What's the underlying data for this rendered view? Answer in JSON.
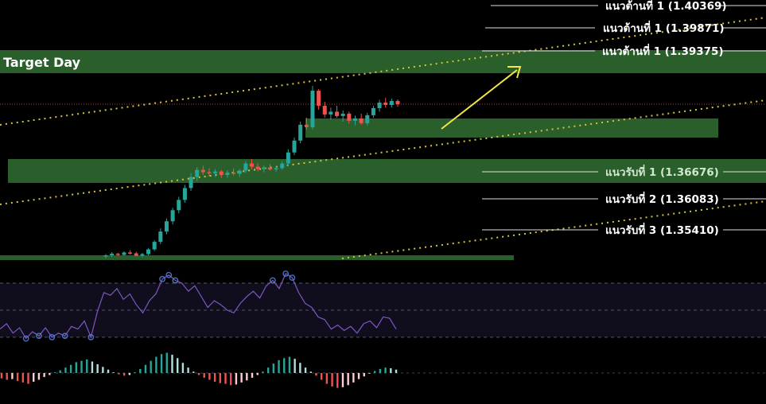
{
  "title": "Target Day",
  "levels": [
    {
      "id": "r1a",
      "label": "แนวต้านที่ 1 (1.40369)"
    },
    {
      "id": "r1b",
      "label": "แนวต้านที่ 1 (1.39871)"
    },
    {
      "id": "r1c",
      "label": "แนวต้านที่ 1 (1.39375)"
    },
    {
      "id": "s1",
      "label": "แนวรับที่ 1 (1.36676)"
    },
    {
      "id": "s2",
      "label": "แนวรับที่ 2 (1.36083)"
    },
    {
      "id": "s3",
      "label": "แนวรับที่ 3 (1.35410)"
    }
  ],
  "colors": {
    "background": "#000000",
    "zone": "#2a5e2a",
    "bull": "#26a69a",
    "bear": "#ef5350",
    "rsi_line": "#7e57c2",
    "rsi_fill": "#100d1c",
    "trend_dotted": "#d4c43a",
    "arrow": "#f2e64a",
    "price_dotted": "#b33a3a"
  },
  "chart_data": [
    {
      "type": "candlestick",
      "description_series": "price",
      "annotations": [
        "แนวต้านที่ 1 (1.40369)",
        "แนวต้านที่ 1 (1.39871)",
        "แนวต้านที่ 1 (1.39375)",
        "แนวรับที่ 1 (1.36676)",
        "แนวรับที่ 2 (1.36083)",
        "แนวรับที่ 3 (1.35410)"
      ],
      "ohlc": [
        [
          1.3449,
          1.3455,
          1.3445,
          1.3452
        ],
        [
          1.3452,
          1.346,
          1.3448,
          1.3456
        ],
        [
          1.3456,
          1.3458,
          1.345,
          1.3453
        ],
        [
          1.3453,
          1.3462,
          1.3451,
          1.3459
        ],
        [
          1.3459,
          1.3465,
          1.3454,
          1.3457
        ],
        [
          1.3457,
          1.3461,
          1.3449,
          1.3451
        ],
        [
          1.3451,
          1.3458,
          1.3447,
          1.3455
        ],
        [
          1.3455,
          1.347,
          1.3452,
          1.3467
        ],
        [
          1.3467,
          1.349,
          1.3463,
          1.3486
        ],
        [
          1.3486,
          1.352,
          1.348,
          1.3512
        ],
        [
          1.3512,
          1.3545,
          1.3505,
          1.3538
        ],
        [
          1.3538,
          1.3572,
          1.353,
          1.3566
        ],
        [
          1.3566,
          1.36,
          1.3558,
          1.3592
        ],
        [
          1.3592,
          1.363,
          1.3585,
          1.3622
        ],
        [
          1.3622,
          1.366,
          1.3615,
          1.365
        ],
        [
          1.365,
          1.3675,
          1.364,
          1.3668
        ],
        [
          1.3668,
          1.3678,
          1.3655,
          1.3662
        ],
        [
          1.3662,
          1.3672,
          1.3652,
          1.3659
        ],
        [
          1.3659,
          1.367,
          1.365,
          1.3664
        ],
        [
          1.3664,
          1.3668,
          1.3648,
          1.3655
        ],
        [
          1.3655,
          1.3667,
          1.3648,
          1.3661
        ],
        [
          1.3661,
          1.3672,
          1.3654,
          1.3658
        ],
        [
          1.3658,
          1.367,
          1.365,
          1.3666
        ],
        [
          1.3666,
          1.369,
          1.366,
          1.3684
        ],
        [
          1.3684,
          1.3695,
          1.367,
          1.3676
        ],
        [
          1.3676,
          1.3684,
          1.3664,
          1.367
        ],
        [
          1.367,
          1.368,
          1.3662,
          1.3674
        ],
        [
          1.3674,
          1.3682,
          1.3666,
          1.3669
        ],
        [
          1.3669,
          1.3678,
          1.3663,
          1.3672
        ],
        [
          1.3672,
          1.369,
          1.3668,
          1.3684
        ],
        [
          1.3684,
          1.372,
          1.3678,
          1.3712
        ],
        [
          1.3712,
          1.375,
          1.3705,
          1.3742
        ],
        [
          1.3742,
          1.379,
          1.3735,
          1.3782
        ],
        [
          1.3782,
          1.38,
          1.377,
          1.3776
        ],
        [
          1.3776,
          1.388,
          1.377,
          1.3868
        ],
        [
          1.3868,
          1.3872,
          1.382,
          1.383
        ],
        [
          1.383,
          1.384,
          1.38,
          1.3808
        ],
        [
          1.3808,
          1.3825,
          1.3795,
          1.3815
        ],
        [
          1.3815,
          1.383,
          1.38,
          1.3804
        ],
        [
          1.3804,
          1.3818,
          1.379,
          1.381
        ],
        [
          1.381,
          1.3815,
          1.3785,
          1.3792
        ],
        [
          1.3792,
          1.3805,
          1.378,
          1.3798
        ],
        [
          1.3798,
          1.381,
          1.3782,
          1.3786
        ],
        [
          1.3786,
          1.3812,
          1.378,
          1.3806
        ],
        [
          1.3806,
          1.383,
          1.38,
          1.3824
        ],
        [
          1.3824,
          1.3845,
          1.3815,
          1.3838
        ],
        [
          1.3838,
          1.385,
          1.3826,
          1.3832
        ],
        [
          1.3832,
          1.3848,
          1.3826,
          1.3842
        ],
        [
          1.3842,
          1.3846,
          1.3828,
          1.3834
        ]
      ]
    },
    {
      "type": "line",
      "description_series": "oscillator",
      "ylim": [
        0,
        100
      ],
      "reference_lines": [
        70,
        50,
        30
      ],
      "values": [
        36,
        40,
        33,
        37,
        29,
        34,
        31,
        37,
        30,
        33,
        31,
        38,
        36,
        42,
        30,
        49,
        63,
        61,
        66,
        58,
        62,
        54,
        48,
        57,
        62,
        73,
        76,
        72,
        70,
        64,
        68,
        60,
        52,
        57,
        54,
        50,
        48,
        55,
        60,
        64,
        59,
        68,
        72,
        66,
        77,
        74,
        63,
        55,
        52,
        45,
        43,
        36,
        39,
        35,
        38,
        33,
        40,
        42,
        37,
        45,
        44,
        36
      ]
    },
    {
      "type": "bar",
      "description_series": "histogram",
      "values": [
        -8,
        -10,
        -9,
        -12,
        -14,
        -16,
        -13,
        -10,
        -6,
        -3,
        1,
        4,
        8,
        12,
        16,
        18,
        20,
        17,
        13,
        9,
        5,
        1,
        -2,
        -4,
        -3,
        1,
        6,
        12,
        18,
        24,
        28,
        30,
        27,
        22,
        15,
        8,
        2,
        -3,
        -7,
        -10,
        -13,
        -15,
        -16,
        -18,
        -17,
        -14,
        -11,
        -7,
        -3,
        2,
        8,
        14,
        19,
        22,
        24,
        21,
        15,
        8,
        2,
        -4,
        -10,
        -16,
        -20,
        -22,
        -21,
        -18,
        -14,
        -9,
        -5,
        -1,
        3,
        6,
        8,
        7,
        5
      ]
    }
  ]
}
